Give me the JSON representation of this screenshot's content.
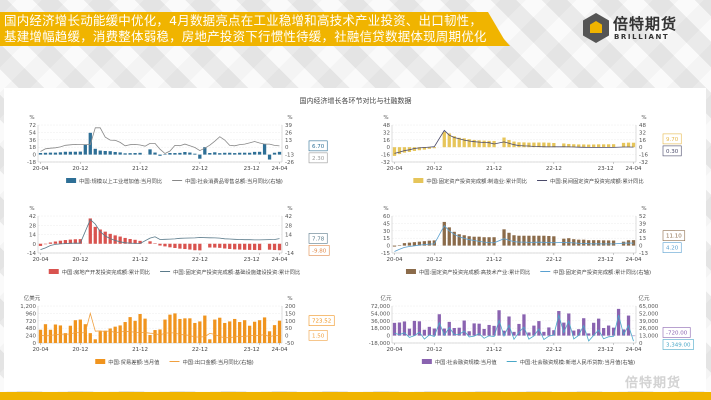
{
  "header": {
    "line1": "国内经济增长动能缓中优化，4月数据亮点在工业稳增和高技术产业投资、出口韧性，",
    "line2": "基建增幅趋缓，消费整体弱稳，房地产投资下行惯性待缓，社融信贷数据体现周期优化",
    "accent": "#f0b400"
  },
  "logo": {
    "cn": "倍特期货",
    "en": "BRILLIANT"
  },
  "watermark": "倍特期货",
  "figure_title": "国内经济增长各环节对比与社融数据",
  "chart_data": [
    {
      "type": "bar+line",
      "start": "20-04",
      "left_unit": "%",
      "right_unit": "%",
      "left_ticks": [
        72,
        54,
        36,
        18,
        0,
        -18
      ],
      "right_ticks": [
        39,
        26,
        13,
        0,
        -13,
        -26
      ],
      "x_ticks": [
        "20-04",
        "20-12",
        "21-12",
        "22-12",
        "23-12",
        "24-04"
      ],
      "bar": {
        "name": "中国:规模以上工业增加值:当月同比",
        "color": "#2e6f96",
        "values": [
          3.9,
          4.4,
          4.8,
          4.8,
          5.6,
          6.9,
          6.9,
          7.0,
          7.3,
          24,
          53,
          14.1,
          9.8,
          8.8,
          8.3,
          6.4,
          5.3,
          3.1,
          3.5,
          3.8,
          4.3,
          null,
          12.8,
          5.0,
          -2.9,
          0.7,
          3.9,
          3.8,
          4.2,
          6.3,
          5.0,
          2.2,
          -10,
          18,
          3.9,
          5.6,
          3.5,
          4.4,
          4.5,
          3.7,
          4.5,
          4.6,
          4.5,
          6.6,
          6.8,
          26,
          -12,
          4.5,
          6.7
        ]
      },
      "line": {
        "name": "中国:社会消费品零售总额:当月同比(右轴)",
        "color": "#888888",
        "values": [
          -7.5,
          -2.8,
          -1.8,
          -1.1,
          0.5,
          3.3,
          4.3,
          5.0,
          4.6,
          4.6,
          4.6,
          34,
          34,
          17.7,
          12.4,
          12.1,
          8.5,
          2.5,
          4.4,
          4.9,
          3.9,
          1.7,
          6.7,
          6.7,
          -3.5,
          -11.1,
          -6.7,
          3.1,
          2.7,
          5.4,
          2.5,
          -0.5,
          -5.9,
          -1.8,
          3.5,
          10.6,
          18.4,
          12.7,
          3.1,
          2.5,
          4.6,
          5.5,
          7.6,
          10.1,
          7.4,
          5.5,
          5.5,
          3.1,
          2.3
        ]
      },
      "callouts": [
        {
          "value": "6.70",
          "color": "#2e6f96"
        },
        {
          "value": "2.30",
          "color": "#999999"
        }
      ]
    },
    {
      "type": "bar+line",
      "start": "20-04",
      "left_unit": "%",
      "right_unit": "%",
      "left_ticks": [
        48,
        32,
        16,
        0,
        -16,
        -32
      ],
      "right_ticks": [
        48,
        32,
        16,
        0,
        -16,
        -32
      ],
      "x_ticks": [
        "20-04",
        "20-12",
        "21-12",
        "22-12",
        "23-12",
        "24-04"
      ],
      "bar": {
        "name": "中国:固定资产投资完成额:制造业:累计同比",
        "color": "#e6c55a",
        "values": [
          -18.8,
          -14.8,
          -11.7,
          -10.2,
          -8.1,
          -6.5,
          -5.3,
          -3.5,
          -2.2,
          null,
          33,
          29.8,
          23.8,
          20.4,
          19.2,
          17.3,
          15.7,
          14.8,
          14.2,
          13.7,
          13.5,
          null,
          20.9,
          15.6,
          12.2,
          10.6,
          10.4,
          9.9,
          10.0,
          10.1,
          10.1,
          9.7,
          9.1,
          null,
          8.1,
          7.0,
          6.4,
          6.0,
          6.0,
          5.7,
          5.9,
          6.2,
          6.2,
          6.3,
          6.5,
          null,
          9.4,
          9.9,
          9.7
        ]
      },
      "line": {
        "name": "中国:民间固定资产投资完成额:累计同比",
        "color": "#4a4a6a",
        "values": [
          -13.3,
          -10.6,
          -7.3,
          -5.7,
          -2.8,
          -1.5,
          -0.7,
          0.2,
          1.0,
          null,
          36.4,
          26.0,
          21.0,
          18.2,
          15.4,
          13.4,
          11.9,
          11.0,
          10.2,
          9.8,
          7.0,
          null,
          11.4,
          8.4,
          5.3,
          3.5,
          2.8,
          2.7,
          1.6,
          1.2,
          0.9,
          0.6,
          0.9,
          null,
          0.8,
          0.6,
          0.4,
          -0.1,
          -0.2,
          -0.5,
          -0.7,
          -0.6,
          -0.5,
          -0.5,
          -0.4,
          null,
          0.4,
          0.5,
          0.3
        ]
      },
      "callouts": [
        {
          "value": "9.70",
          "color": "#e6b84a"
        },
        {
          "value": "0.30",
          "color": "#4a4a6a"
        }
      ]
    },
    {
      "type": "bar+line",
      "start": "20-04",
      "left_unit": "%",
      "right_unit": "%",
      "left_ticks": [
        42,
        28,
        14,
        0,
        -14
      ],
      "right_ticks": [
        42,
        28,
        14,
        0,
        -14
      ],
      "x_ticks": [
        "20-04",
        "20-12",
        "21-12",
        "22-12",
        "23-12",
        "24-04"
      ],
      "bar": {
        "name": "中国:房地产开发投资完成额:累计同比",
        "color": "#d9534f",
        "values": [
          -3.3,
          -0.3,
          1.9,
          3.4,
          4.6,
          5.6,
          6.3,
          6.8,
          7.0,
          null,
          38.3,
          25.6,
          21.6,
          18.3,
          15.0,
          12.7,
          10.9,
          8.8,
          7.2,
          6.0,
          4.4,
          null,
          3.7,
          0.7,
          -2.7,
          -4.0,
          -5.4,
          -6.4,
          -7.4,
          -8.0,
          -8.8,
          -9.8,
          -10.0,
          null,
          -5.7,
          -5.8,
          -6.2,
          -7.2,
          -7.9,
          -8.5,
          -8.8,
          -9.1,
          -9.3,
          -9.4,
          -9.6,
          null,
          -9.0,
          -9.5,
          -9.8
        ]
      },
      "line": {
        "name": "中国:固定资产投资完成额:基础设施建设投资:累计同比",
        "color": "#5a7a8a",
        "values": [
          -8.8,
          -6.3,
          -2.7,
          -1.0,
          -0.3,
          0.2,
          0.7,
          1.0,
          0.9,
          null,
          36.6,
          29.7,
          18.4,
          11.8,
          7.8,
          4.9,
          2.9,
          1.5,
          1.0,
          0.5,
          0.4,
          null,
          8.6,
          10.5,
          6.5,
          6.7,
          7.1,
          7.4,
          8.3,
          8.6,
          8.7,
          8.9,
          9.4,
          null,
          9.0,
          8.8,
          8.5,
          7.5,
          7.2,
          6.8,
          6.4,
          6.2,
          6.2,
          5.9,
          5.8,
          null,
          6.3,
          6.5,
          7.78
        ]
      },
      "callouts": [
        {
          "value": "7.78",
          "color": "#5a7a8a"
        },
        {
          "value": "-9.80",
          "color": "#e08a4a"
        }
      ]
    },
    {
      "type": "bar+line",
      "start": "20-04",
      "left_unit": "%",
      "right_unit": "%",
      "left_ticks": [
        60,
        45,
        30,
        15,
        0,
        -15
      ],
      "right_ticks": [
        52,
        39,
        26,
        13,
        0,
        -13
      ],
      "x_ticks": [
        "20-04",
        "20-12",
        "21-12",
        "22-12",
        "23-12",
        "24-04"
      ],
      "bar": {
        "name": "中国:固定资产投资完成额:高技术产业:累计同比",
        "color": "#8b6b4a",
        "values": [
          -2,
          1,
          5,
          6,
          7,
          8,
          9,
          10,
          10.6,
          null,
          48,
          37,
          28,
          23,
          21,
          19,
          18,
          18,
          17,
          17,
          17,
          null,
          33,
          26,
          21,
          20,
          20,
          20,
          20,
          20,
          20,
          19.5,
          18.9,
          null,
          14,
          15,
          13,
          12,
          12,
          11,
          11,
          11,
          10.7,
          10.5,
          10.3,
          null,
          8,
          10.8,
          11.1
        ]
      },
      "line": {
        "name": "中国:固定资产投资完成额:累计同比(右轴)",
        "color": "#5aa0d0",
        "values": [
          -10.3,
          -6.3,
          -3.1,
          -1.6,
          -0.3,
          0.8,
          1.8,
          2.6,
          2.9,
          null,
          35,
          25.6,
          19.9,
          15.4,
          12.6,
          10.3,
          8.9,
          7.3,
          6.1,
          5.2,
          4.9,
          null,
          12.2,
          9.3,
          6.8,
          6.2,
          6.1,
          5.7,
          5.8,
          5.9,
          5.8,
          5.3,
          5.1,
          null,
          5.5,
          5.1,
          4.7,
          4.0,
          3.8,
          3.4,
          3.2,
          3.1,
          2.9,
          2.9,
          3.0,
          null,
          4.2,
          4.5,
          4.2
        ]
      },
      "callouts": [
        {
          "value": "11.10",
          "color": "#8b6b4a"
        },
        {
          "value": "4.20",
          "color": "#5aa0d0"
        }
      ]
    },
    {
      "type": "bar+line",
      "start": "20-04",
      "left_unit": "亿美元",
      "right_unit": "%",
      "left_ticks": [
        "1,200",
        "960",
        "720",
        "480",
        "240",
        "0"
      ],
      "right_ticks": [
        200,
        150,
        100,
        50,
        0,
        -50
      ],
      "x_ticks": [
        "20-04",
        "20-12",
        "21-12",
        "22-12",
        "23-12",
        "24-04"
      ],
      "bar": {
        "name": "中国:贸易差额:当月值",
        "color": "#f0941e",
        "values": [
          430,
          610,
          430,
          600,
          570,
          320,
          560,
          740,
          760,
          610,
          320,
          120,
          380,
          400,
          470,
          530,
          570,
          680,
          840,
          720,
          940,
          790,
          260,
          420,
          440,
          760,
          920,
          960,
          780,
          800,
          800,
          650,
          700,
          890,
          120,
          760,
          820,
          650,
          700,
          780,
          680,
          740,
          560,
          690,
          740,
          830,
          380,
          580,
          723.52
        ]
      },
      "line": {
        "name": "中国:出口金额:当月同比(右轴)",
        "color": "#f0a040",
        "values": [
          3,
          -3,
          0.5,
          7,
          9.5,
          9.9,
          11,
          21,
          18,
          20,
          150,
          30,
          32,
          28,
          32,
          19,
          25,
          28,
          27,
          22,
          21,
          20,
          16,
          14,
          4,
          17,
          18,
          18,
          7,
          6,
          -0.3,
          -9,
          -10,
          -7,
          15,
          8,
          -7,
          -14,
          -14,
          -9,
          -6,
          -6,
          -0.5,
          0.5,
          2.3,
          7,
          -7.5,
          1.5,
          1.5
        ]
      },
      "callouts": [
        {
          "value": "723.52",
          "color": "#f0941e"
        },
        {
          "value": "1.50",
          "color": "#f0a040"
        }
      ]
    },
    {
      "type": "bar+line",
      "start": "20-04",
      "left_unit": "亿元",
      "right_unit": "亿元",
      "left_ticks": [
        "72,000",
        "54,000",
        "36,000",
        "18,000",
        "0",
        "-18,000"
      ],
      "right_ticks": [
        "65,000",
        "52,000",
        "39,000",
        "26,000",
        "13,000",
        "0"
      ],
      "x_ticks": [
        "20-04",
        "20-12",
        "21-12",
        "22-12",
        "23-12",
        "24-04"
      ],
      "bar": {
        "name": "中国:社会融资规模:当月值",
        "color": "#8a63b0",
        "values": [
          31000,
          31900,
          34400,
          16900,
          35800,
          34800,
          14200,
          21300,
          17200,
          52000,
          17100,
          33400,
          18500,
          19200,
          36700,
          10600,
          29700,
          29000,
          16200,
          25900,
          23700,
          61700,
          11900,
          46500,
          9100,
          28400,
          51700,
          7600,
          24300,
          35300,
          9100,
          19900,
          13100,
          59800,
          31600,
          53800,
          12200,
          15600,
          42300,
          5300,
          31200,
          41300,
          18400,
          24500,
          19300,
          65000,
          15000,
          48700,
          -720
        ]
      },
      "line": {
        "name": "中国:社会融资规模:新增人民币贷款:当月值(右轴)",
        "color": "#4aa8c8",
        "values": [
          17000,
          14800,
          18100,
          9900,
          12800,
          19000,
          6900,
          14300,
          11400,
          35800,
          13600,
          27300,
          14700,
          15000,
          21200,
          10800,
          12200,
          16600,
          8262,
          12700,
          11300,
          39800,
          12300,
          31300,
          6454,
          18900,
          28000,
          6790,
          12500,
          24700,
          6152,
          12100,
          14000,
          49000,
          18100,
          38900,
          7188,
          13600,
          30500,
          3459,
          13600,
          23100,
          7384,
          10900,
          11700,
          49200,
          14500,
          30900,
          3349
        ]
      },
      "callouts": [
        {
          "value": "3,349.00",
          "color": "#4aa8c8"
        },
        {
          "value": "-720.00",
          "color": "#8a63b0"
        }
      ]
    }
  ]
}
